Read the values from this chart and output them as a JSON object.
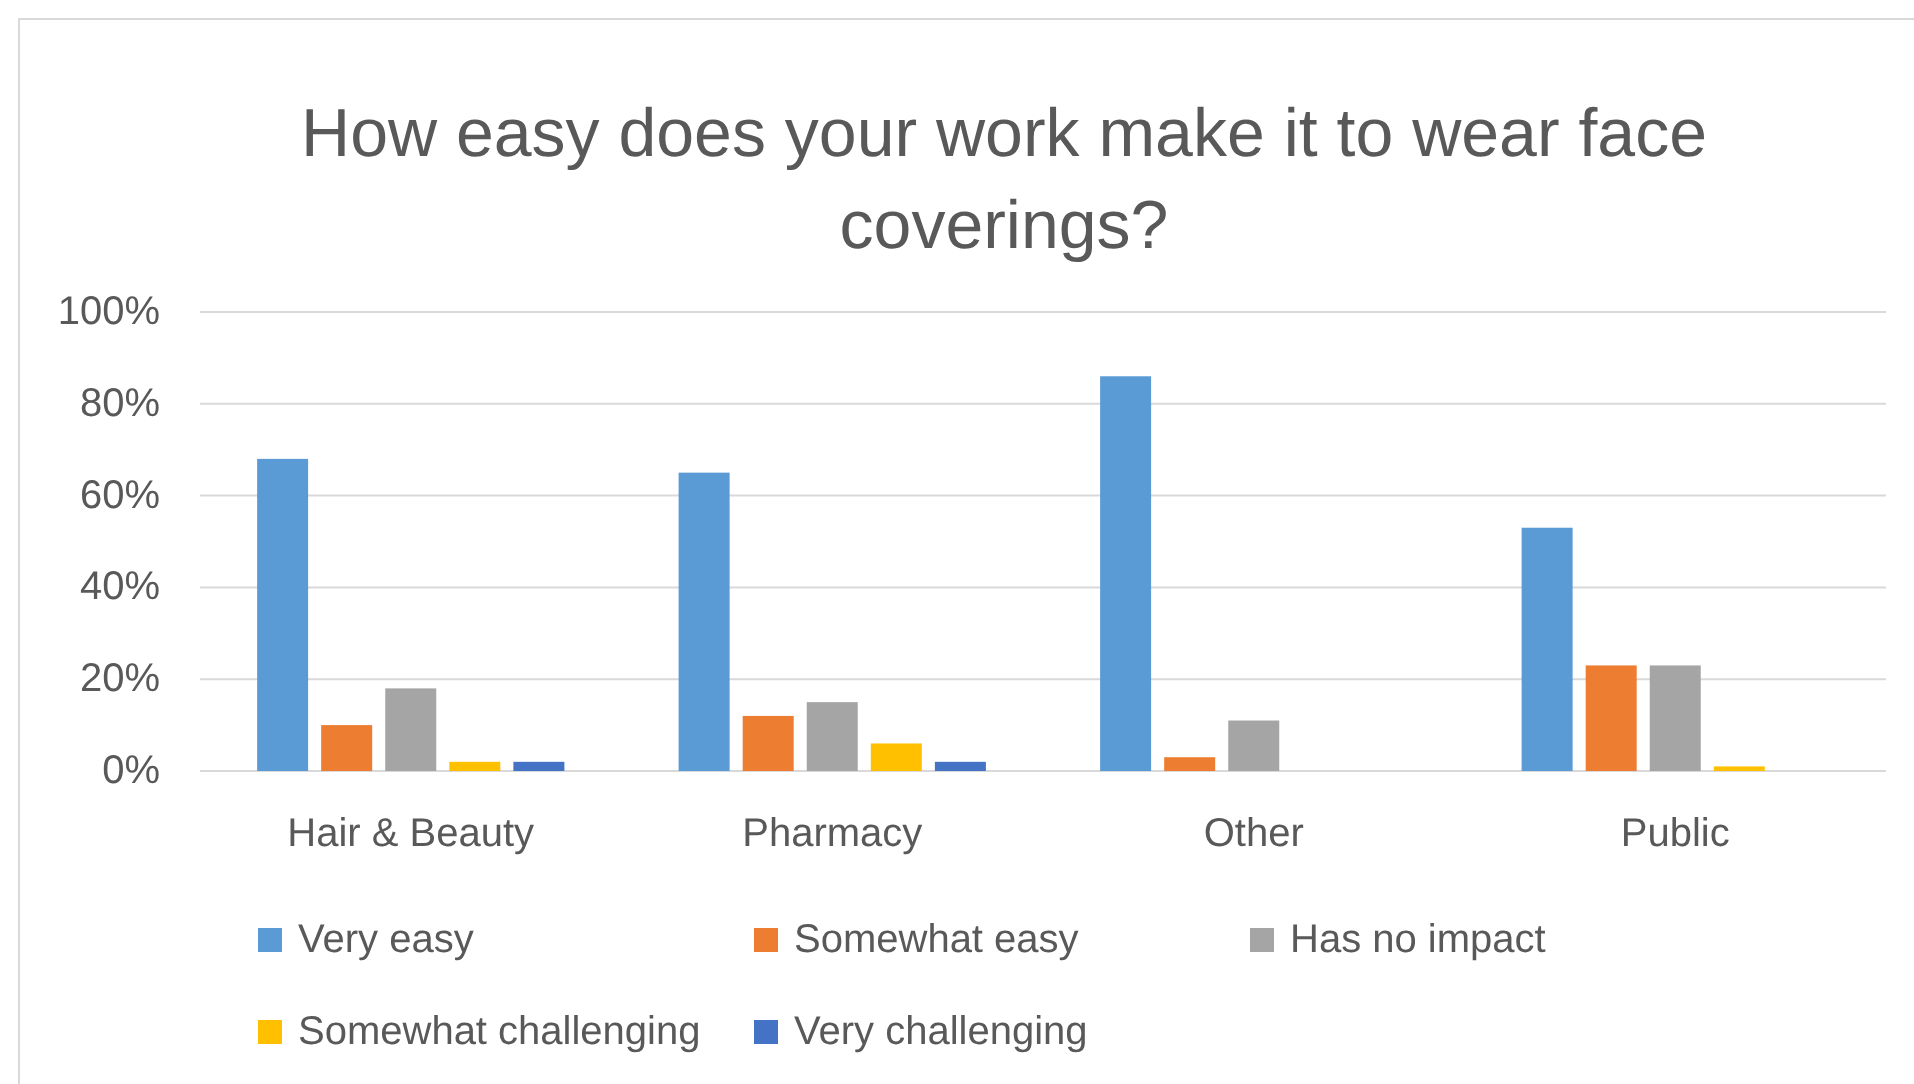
{
  "chart_data": {
    "type": "bar",
    "title": "How easy does your work make it to wear face coverings?",
    "categories": [
      "Hair & Beauty",
      "Pharmacy",
      "Other",
      "Public"
    ],
    "series": [
      {
        "name": "Very easy",
        "color": "#5b9bd5",
        "values": [
          68,
          65,
          86,
          53
        ]
      },
      {
        "name": "Somewhat easy",
        "color": "#ed7d31",
        "values": [
          10,
          12,
          3,
          23
        ]
      },
      {
        "name": "Has no impact",
        "color": "#a5a5a5",
        "values": [
          18,
          15,
          11,
          23
        ]
      },
      {
        "name": "Somewhat challenging",
        "color": "#ffc000",
        "values": [
          2,
          6,
          0,
          1
        ]
      },
      {
        "name": "Very challenging",
        "color": "#4472c4",
        "values": [
          2,
          2,
          0,
          0
        ]
      }
    ],
    "ylim": [
      0,
      100
    ],
    "yticks": [
      {
        "value": 0,
        "label": "0%"
      },
      {
        "value": 20,
        "label": "20%"
      },
      {
        "value": 40,
        "label": "40%"
      },
      {
        "value": 60,
        "label": "60%"
      },
      {
        "value": 80,
        "label": "80%"
      },
      {
        "value": 100,
        "label": "100%"
      }
    ],
    "grid": "y",
    "legend": "bottom"
  }
}
